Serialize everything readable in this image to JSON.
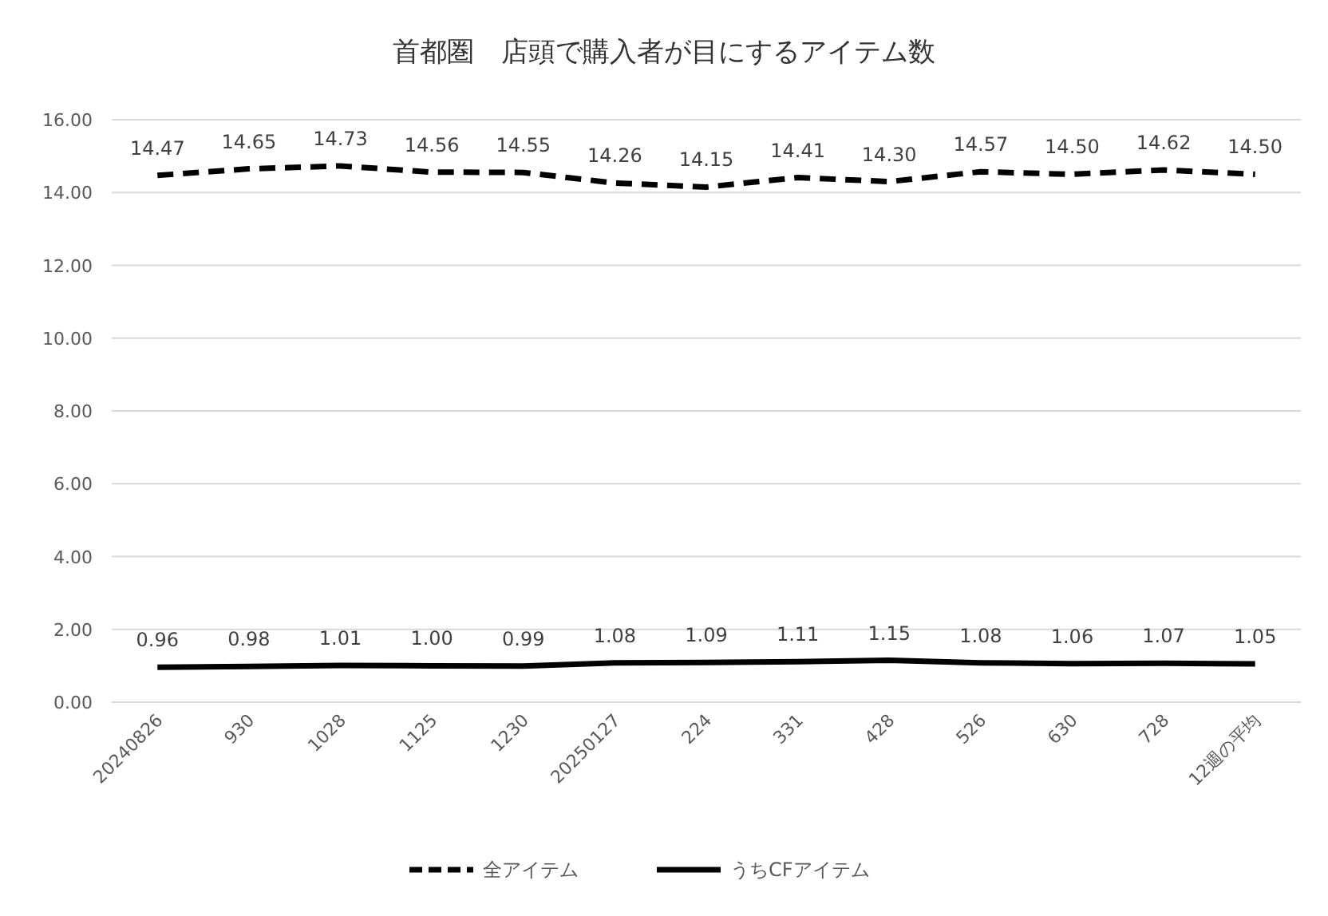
{
  "chart_data": {
    "type": "line",
    "title": "首都圏　店頭で購入者が目にするアイテム数",
    "categories": [
      "20240826",
      "930",
      "1028",
      "1125",
      "1230",
      "20250127",
      "224",
      "331",
      "428",
      "526",
      "630",
      "728",
      "12週の平均"
    ],
    "series": [
      {
        "name": "全アイテム",
        "color": "#000000",
        "line_style": "dashed",
        "values": [
          14.47,
          14.65,
          14.73,
          14.56,
          14.55,
          14.26,
          14.15,
          14.41,
          14.3,
          14.57,
          14.5,
          14.62,
          14.5
        ],
        "value_labels": [
          "14.47",
          "14.65",
          "14.73",
          "14.56",
          "14.55",
          "14.26",
          "14.15",
          "14.41",
          "14.30",
          "14.57",
          "14.50",
          "14.62",
          "14.50"
        ]
      },
      {
        "name": "うちCFアイテム",
        "color": "#000000",
        "line_style": "solid",
        "values": [
          0.96,
          0.98,
          1.01,
          1.0,
          0.99,
          1.08,
          1.09,
          1.11,
          1.15,
          1.08,
          1.06,
          1.07,
          1.05
        ],
        "value_labels": [
          "0.96",
          "0.98",
          "1.01",
          "1.00",
          "0.99",
          "1.08",
          "1.09",
          "1.11",
          "1.15",
          "1.08",
          "1.06",
          "1.07",
          "1.05"
        ]
      }
    ],
    "ylim": [
      0,
      16
    ],
    "yticks": [
      {
        "value": 0,
        "label": "0.00"
      },
      {
        "value": 2,
        "label": "2.00"
      },
      {
        "value": 4,
        "label": "4.00"
      },
      {
        "value": 6,
        "label": "6.00"
      },
      {
        "value": 8,
        "label": "8.00"
      },
      {
        "value": 10,
        "label": "10.00"
      },
      {
        "value": 12,
        "label": "12.00"
      },
      {
        "value": 14,
        "label": "14.00"
      },
      {
        "value": 16,
        "label": "16.00"
      }
    ],
    "grid": "y",
    "legend": "bottom",
    "marker": "none"
  }
}
